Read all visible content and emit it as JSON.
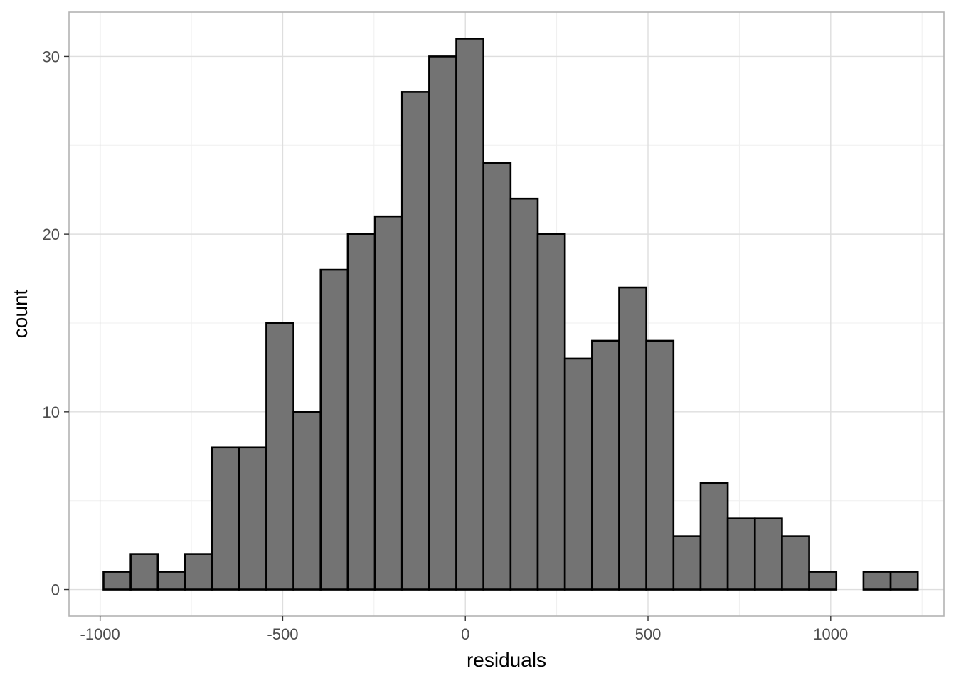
{
  "chart_data": {
    "type": "histogram",
    "title": "",
    "xlabel": "residuals",
    "ylabel": "count",
    "xlim": [
      -1085,
      1310
    ],
    "ylim": [
      -1.5,
      32.5
    ],
    "bin_width": 74.3,
    "x_ticks": [
      -1000,
      -500,
      0,
      500,
      1000
    ],
    "x_tick_labels": [
      "-1000",
      "-500",
      "0",
      "500",
      "1000"
    ],
    "y_ticks": [
      0,
      10,
      20,
      30
    ],
    "y_tick_labels": [
      "0",
      "10",
      "20",
      "30"
    ],
    "grid": true,
    "bins": [
      {
        "x0": -990.6,
        "x1": -916.3,
        "count": 1
      },
      {
        "x0": -916.3,
        "x1": -842.0,
        "count": 2
      },
      {
        "x0": -842.0,
        "x1": -767.7,
        "count": 1
      },
      {
        "x0": -767.7,
        "x1": -693.4,
        "count": 2
      },
      {
        "x0": -693.4,
        "x1": -619.1,
        "count": 8
      },
      {
        "x0": -619.1,
        "x1": -544.8,
        "count": 8
      },
      {
        "x0": -544.8,
        "x1": -470.5,
        "count": 15
      },
      {
        "x0": -470.5,
        "x1": -396.2,
        "count": 10
      },
      {
        "x0": -396.2,
        "x1": -321.9,
        "count": 18
      },
      {
        "x0": -321.9,
        "x1": -247.6,
        "count": 20
      },
      {
        "x0": -247.6,
        "x1": -173.3,
        "count": 21
      },
      {
        "x0": -173.3,
        "x1": -99.0,
        "count": 28
      },
      {
        "x0": -99.0,
        "x1": -24.7,
        "count": 30
      },
      {
        "x0": -24.7,
        "x1": 49.6,
        "count": 31
      },
      {
        "x0": 49.6,
        "x1": 123.9,
        "count": 24
      },
      {
        "x0": 123.9,
        "x1": 198.2,
        "count": 22
      },
      {
        "x0": 198.2,
        "x1": 272.5,
        "count": 20
      },
      {
        "x0": 272.5,
        "x1": 346.8,
        "count": 13
      },
      {
        "x0": 346.8,
        "x1": 421.1,
        "count": 14
      },
      {
        "x0": 421.1,
        "x1": 495.4,
        "count": 17
      },
      {
        "x0": 495.4,
        "x1": 569.7,
        "count": 14
      },
      {
        "x0": 569.7,
        "x1": 644.0,
        "count": 3
      },
      {
        "x0": 644.0,
        "x1": 718.3,
        "count": 6
      },
      {
        "x0": 718.3,
        "x1": 792.6,
        "count": 4
      },
      {
        "x0": 792.6,
        "x1": 866.9,
        "count": 4
      },
      {
        "x0": 866.9,
        "x1": 941.2,
        "count": 3
      },
      {
        "x0": 941.2,
        "x1": 1015.5,
        "count": 1
      },
      {
        "x0": 1015.5,
        "x1": 1089.8,
        "count": 0
      },
      {
        "x0": 1089.8,
        "x1": 1164.1,
        "count": 1
      },
      {
        "x0": 1164.1,
        "x1": 1238.4,
        "count": 1
      }
    ],
    "colors": {
      "bar_fill": "#737373",
      "bar_stroke": "#000000",
      "panel_border": "#b3b3b3",
      "grid_major": "#dedede",
      "grid_minor": "#efefef",
      "tick_text": "#4d4d4d",
      "title_text": "#000000"
    }
  }
}
